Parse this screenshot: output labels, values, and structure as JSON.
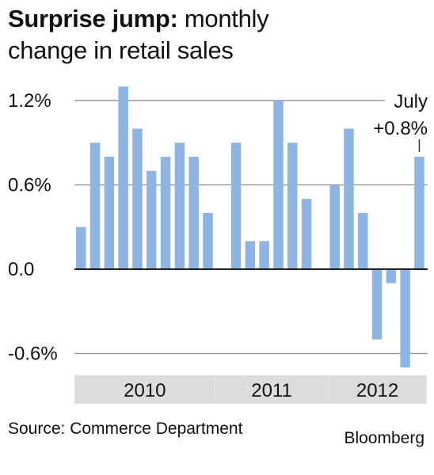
{
  "title": {
    "bold": "Surprise jump:",
    "regular": " monthly",
    "line2": "change in retail sales"
  },
  "chart_data": {
    "type": "bar",
    "values": [
      0.3,
      0.9,
      0.8,
      1.3,
      1.0,
      0.7,
      0.8,
      0.9,
      0.8,
      0.4,
      null,
      0.9,
      0.2,
      0.2,
      1.2,
      0.9,
      0.5,
      null,
      0.6,
      1.0,
      0.4,
      -0.5,
      -0.1,
      -0.7,
      0.8
    ],
    "yticks": [
      {
        "value": 1.2,
        "label": "1.2%"
      },
      {
        "value": 0.6,
        "label": "0.6%"
      },
      {
        "value": 0.0,
        "label": "0.0"
      },
      {
        "value": -0.6,
        "label": "-0.6%"
      }
    ],
    "ylim": [
      -0.7,
      1.3
    ],
    "year_groups": [
      {
        "label": "2010",
        "start": 0,
        "end": 9
      },
      {
        "label": "2011",
        "start": 10,
        "end": 17
      },
      {
        "label": "2012",
        "start": 18,
        "end": 24
      }
    ],
    "annotation": {
      "line1": "July",
      "line2": "+0.8%",
      "index": 24
    },
    "bar_color": "#8eb4e3",
    "grid": true
  },
  "footer": {
    "source": "Source: Commerce Department",
    "brand": "Bloomberg"
  }
}
